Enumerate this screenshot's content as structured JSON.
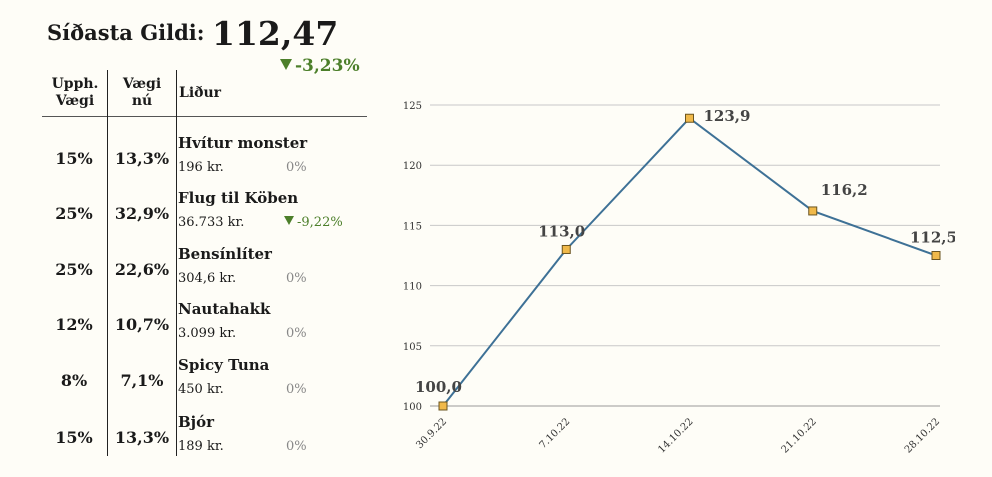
{
  "header": {
    "label": "Síðasta Gildi:",
    "value": "112,47",
    "change": "-3,23%",
    "change_color": "#4c7f2a"
  },
  "table": {
    "headers": {
      "col1": "Upph. Vægi",
      "col2": "Vægi nú",
      "col3": "Liður"
    },
    "rows": [
      {
        "upph": "15%",
        "nu": "13,3%",
        "name": "Hvítur monster",
        "price": "196 kr.",
        "change": "0%",
        "direction": "flat"
      },
      {
        "upph": "25%",
        "nu": "32,9%",
        "name": "Flug til Köben",
        "price": "36.733 kr.",
        "change": "-9,22%",
        "direction": "down"
      },
      {
        "upph": "25%",
        "nu": "22,6%",
        "name": "Bensínlíter",
        "price": "304,6 kr.",
        "change": "0%",
        "direction": "flat"
      },
      {
        "upph": "12%",
        "nu": "10,7%",
        "name": "Nautahakk",
        "price": "3.099 kr.",
        "change": "0%",
        "direction": "flat"
      },
      {
        "upph": "8%",
        "nu": "7,1%",
        "name": "Spicy Tuna",
        "price": "450 kr.",
        "change": "0%",
        "direction": "flat"
      },
      {
        "upph": "15%",
        "nu": "13,3%",
        "name": "Bjór",
        "price": "189 kr.",
        "change": "0%",
        "direction": "flat"
      }
    ]
  },
  "chart_data": {
    "type": "line",
    "x": [
      "30.9.22",
      "7.10.22",
      "14.10.22",
      "21.10.22",
      "28.10.22"
    ],
    "values": [
      100.0,
      113.0,
      123.9,
      116.2,
      112.5
    ],
    "data_labels": [
      "100,0",
      "113,0",
      "123,9",
      "116,2",
      "112,5"
    ],
    "ylim": [
      100,
      125
    ],
    "yticks": [
      100,
      105,
      110,
      115,
      120,
      125
    ],
    "grid": true,
    "line_color": "#3e7196",
    "marker_color": "#f0b94a",
    "marker_edge": "#6b5520"
  }
}
